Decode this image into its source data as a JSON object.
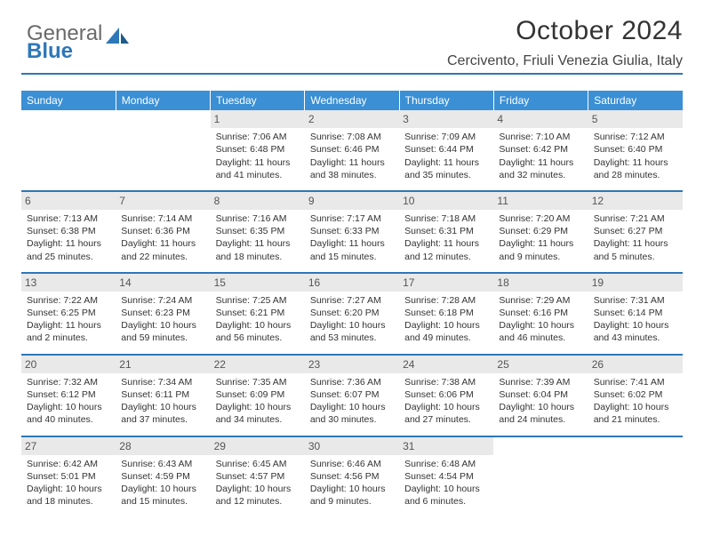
{
  "logo": {
    "line1": "General",
    "line2": "Blue"
  },
  "title": "October 2024",
  "location": "Cercivento, Friuli Venezia Giulia, Italy",
  "colors": {
    "header_bg": "#3b8fd4",
    "divider": "#2e77b8",
    "daynum_bg": "#e9e9e9",
    "text": "#333333",
    "logo_blue": "#2e77b8"
  },
  "weekdays": [
    "Sunday",
    "Monday",
    "Tuesday",
    "Wednesday",
    "Thursday",
    "Friday",
    "Saturday"
  ],
  "weeks": [
    [
      {
        "n": "",
        "empty": true
      },
      {
        "n": "",
        "empty": true
      },
      {
        "n": "1",
        "sunrise": "7:06 AM",
        "sunset": "6:48 PM",
        "daylight": "11 hours and 41 minutes."
      },
      {
        "n": "2",
        "sunrise": "7:08 AM",
        "sunset": "6:46 PM",
        "daylight": "11 hours and 38 minutes."
      },
      {
        "n": "3",
        "sunrise": "7:09 AM",
        "sunset": "6:44 PM",
        "daylight": "11 hours and 35 minutes."
      },
      {
        "n": "4",
        "sunrise": "7:10 AM",
        "sunset": "6:42 PM",
        "daylight": "11 hours and 32 minutes."
      },
      {
        "n": "5",
        "sunrise": "7:12 AM",
        "sunset": "6:40 PM",
        "daylight": "11 hours and 28 minutes."
      }
    ],
    [
      {
        "n": "6",
        "sunrise": "7:13 AM",
        "sunset": "6:38 PM",
        "daylight": "11 hours and 25 minutes."
      },
      {
        "n": "7",
        "sunrise": "7:14 AM",
        "sunset": "6:36 PM",
        "daylight": "11 hours and 22 minutes."
      },
      {
        "n": "8",
        "sunrise": "7:16 AM",
        "sunset": "6:35 PM",
        "daylight": "11 hours and 18 minutes."
      },
      {
        "n": "9",
        "sunrise": "7:17 AM",
        "sunset": "6:33 PM",
        "daylight": "11 hours and 15 minutes."
      },
      {
        "n": "10",
        "sunrise": "7:18 AM",
        "sunset": "6:31 PM",
        "daylight": "11 hours and 12 minutes."
      },
      {
        "n": "11",
        "sunrise": "7:20 AM",
        "sunset": "6:29 PM",
        "daylight": "11 hours and 9 minutes."
      },
      {
        "n": "12",
        "sunrise": "7:21 AM",
        "sunset": "6:27 PM",
        "daylight": "11 hours and 5 minutes."
      }
    ],
    [
      {
        "n": "13",
        "sunrise": "7:22 AM",
        "sunset": "6:25 PM",
        "daylight": "11 hours and 2 minutes."
      },
      {
        "n": "14",
        "sunrise": "7:24 AM",
        "sunset": "6:23 PM",
        "daylight": "10 hours and 59 minutes."
      },
      {
        "n": "15",
        "sunrise": "7:25 AM",
        "sunset": "6:21 PM",
        "daylight": "10 hours and 56 minutes."
      },
      {
        "n": "16",
        "sunrise": "7:27 AM",
        "sunset": "6:20 PM",
        "daylight": "10 hours and 53 minutes."
      },
      {
        "n": "17",
        "sunrise": "7:28 AM",
        "sunset": "6:18 PM",
        "daylight": "10 hours and 49 minutes."
      },
      {
        "n": "18",
        "sunrise": "7:29 AM",
        "sunset": "6:16 PM",
        "daylight": "10 hours and 46 minutes."
      },
      {
        "n": "19",
        "sunrise": "7:31 AM",
        "sunset": "6:14 PM",
        "daylight": "10 hours and 43 minutes."
      }
    ],
    [
      {
        "n": "20",
        "sunrise": "7:32 AM",
        "sunset": "6:12 PM",
        "daylight": "10 hours and 40 minutes."
      },
      {
        "n": "21",
        "sunrise": "7:34 AM",
        "sunset": "6:11 PM",
        "daylight": "10 hours and 37 minutes."
      },
      {
        "n": "22",
        "sunrise": "7:35 AM",
        "sunset": "6:09 PM",
        "daylight": "10 hours and 34 minutes."
      },
      {
        "n": "23",
        "sunrise": "7:36 AM",
        "sunset": "6:07 PM",
        "daylight": "10 hours and 30 minutes."
      },
      {
        "n": "24",
        "sunrise": "7:38 AM",
        "sunset": "6:06 PM",
        "daylight": "10 hours and 27 minutes."
      },
      {
        "n": "25",
        "sunrise": "7:39 AM",
        "sunset": "6:04 PM",
        "daylight": "10 hours and 24 minutes."
      },
      {
        "n": "26",
        "sunrise": "7:41 AM",
        "sunset": "6:02 PM",
        "daylight": "10 hours and 21 minutes."
      }
    ],
    [
      {
        "n": "27",
        "sunrise": "6:42 AM",
        "sunset": "5:01 PM",
        "daylight": "10 hours and 18 minutes."
      },
      {
        "n": "28",
        "sunrise": "6:43 AM",
        "sunset": "4:59 PM",
        "daylight": "10 hours and 15 minutes."
      },
      {
        "n": "29",
        "sunrise": "6:45 AM",
        "sunset": "4:57 PM",
        "daylight": "10 hours and 12 minutes."
      },
      {
        "n": "30",
        "sunrise": "6:46 AM",
        "sunset": "4:56 PM",
        "daylight": "10 hours and 9 minutes."
      },
      {
        "n": "31",
        "sunrise": "6:48 AM",
        "sunset": "4:54 PM",
        "daylight": "10 hours and 6 minutes."
      },
      {
        "n": "",
        "empty": true
      },
      {
        "n": "",
        "empty": true
      }
    ]
  ],
  "labels": {
    "sunrise": "Sunrise:",
    "sunset": "Sunset:",
    "daylight": "Daylight:"
  }
}
